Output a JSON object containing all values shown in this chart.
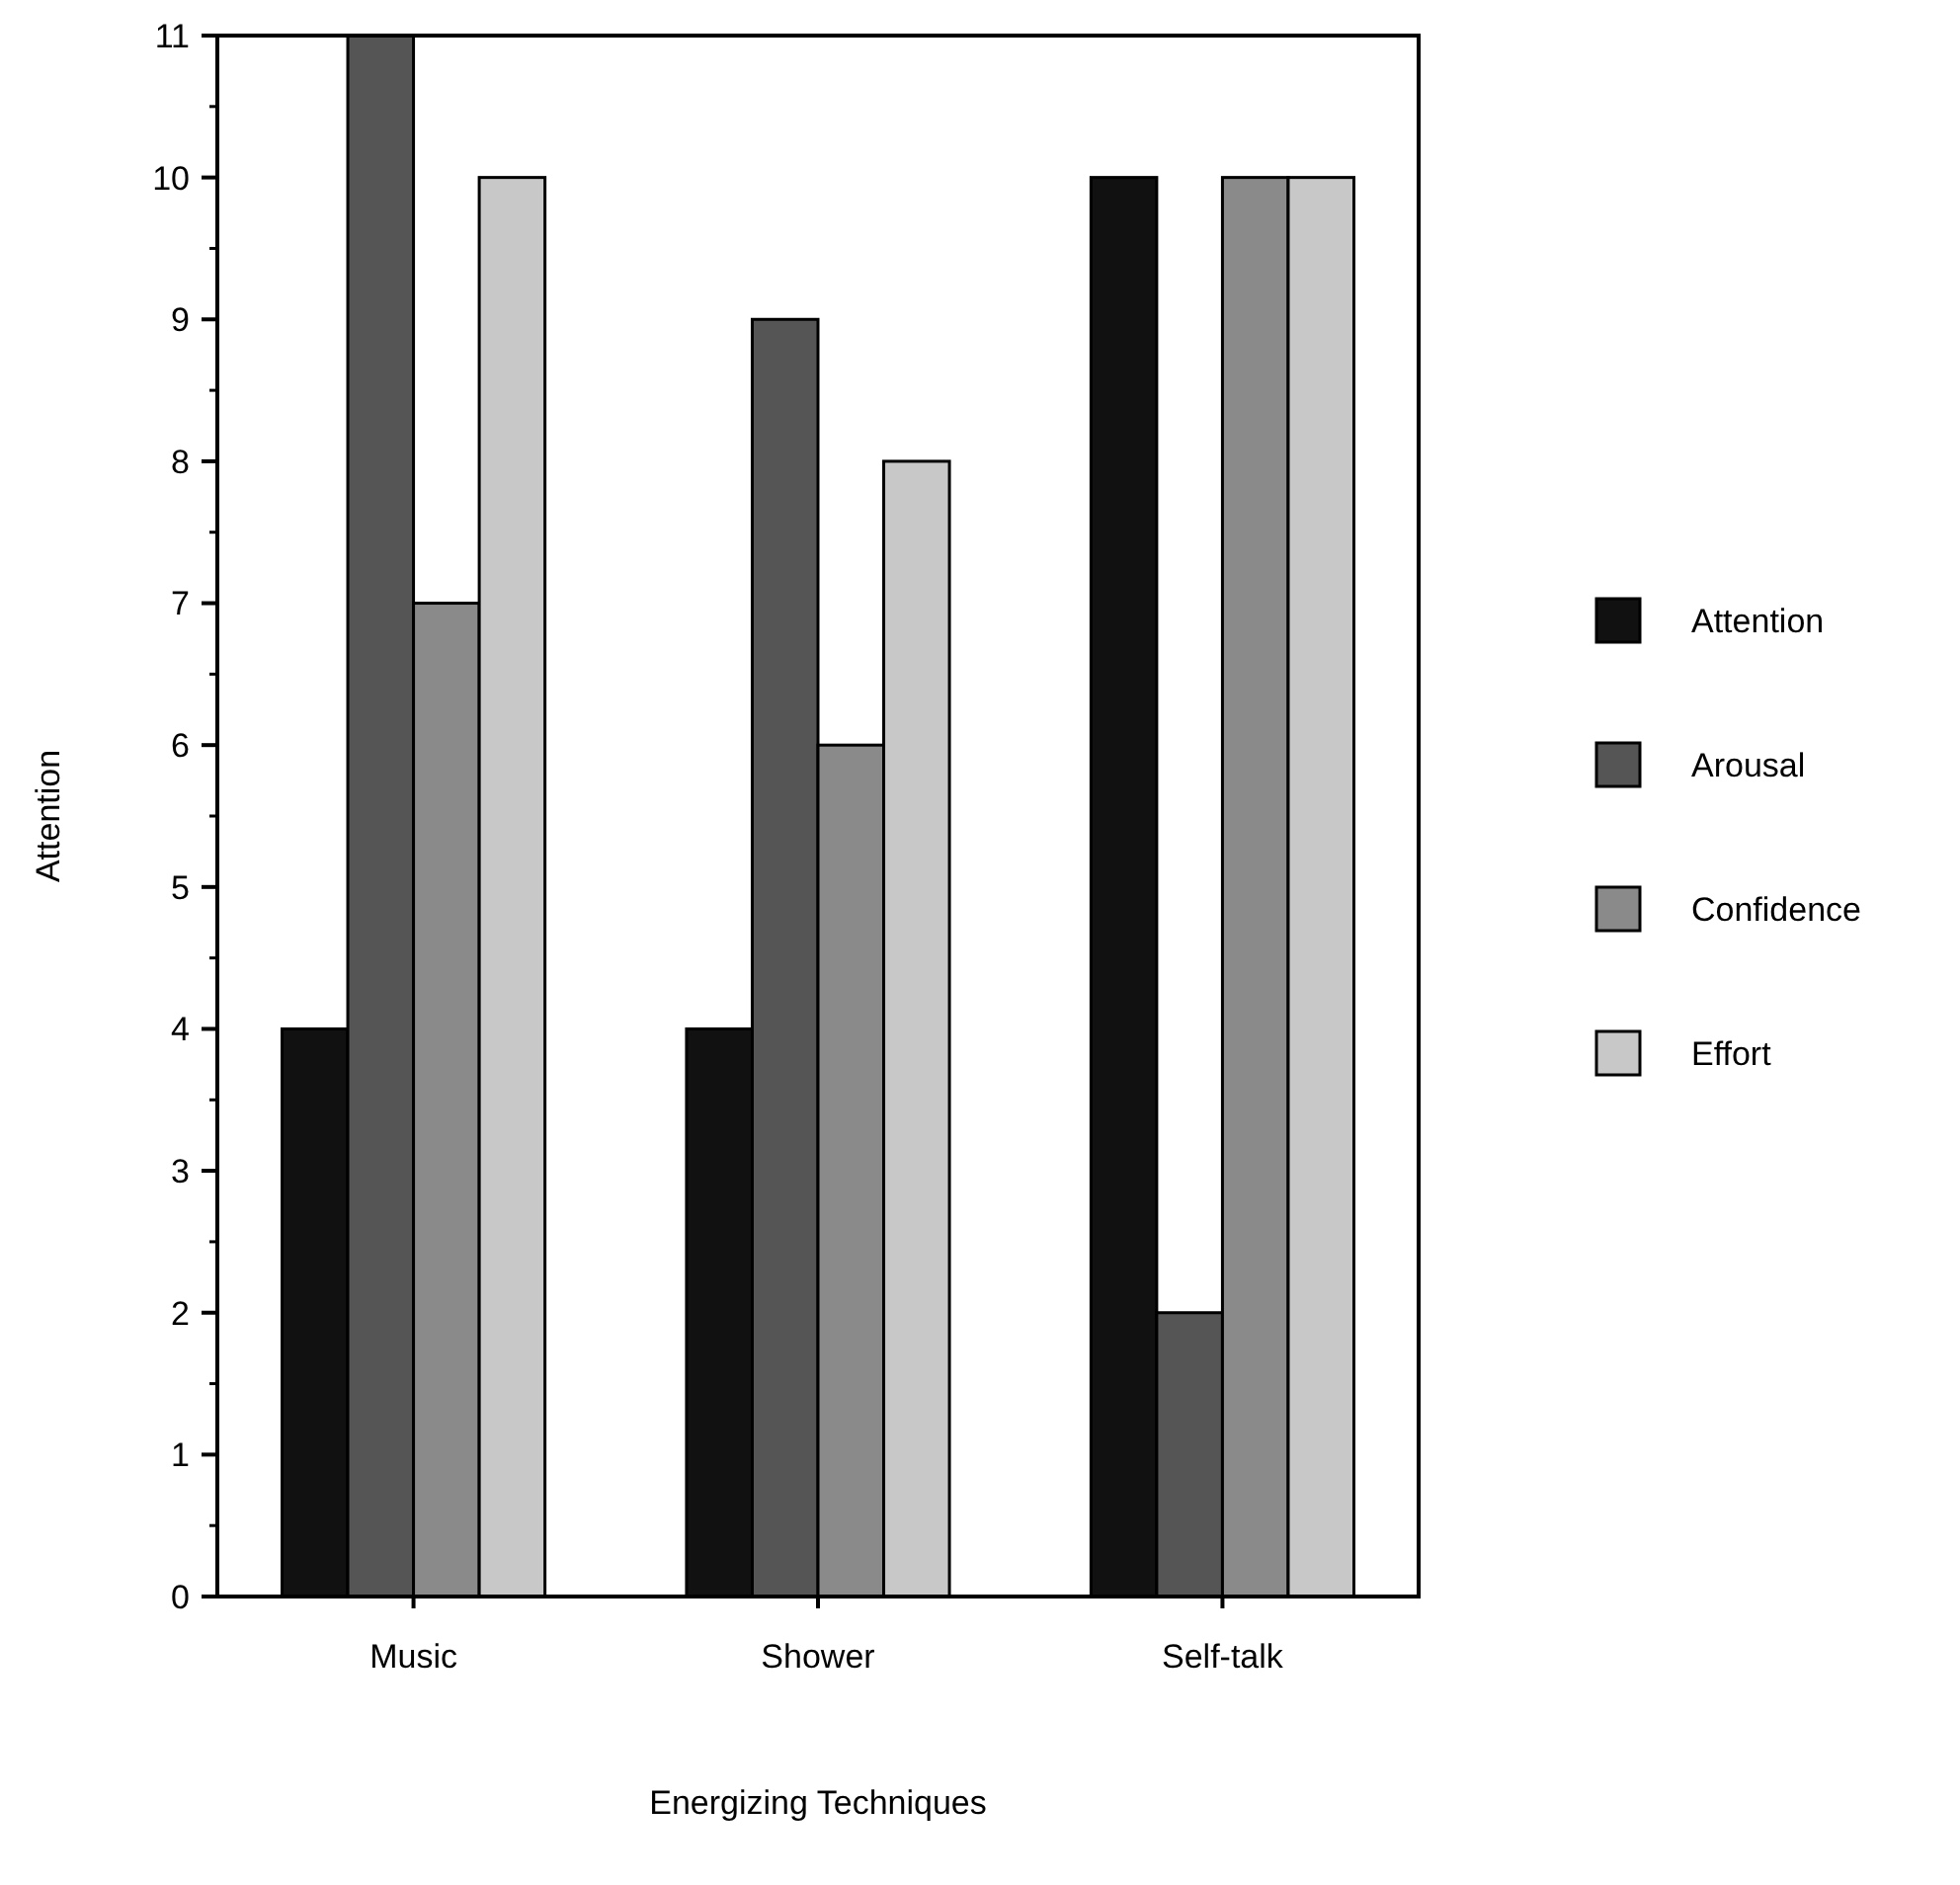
{
  "chart_data": {
    "type": "bar",
    "xlabel": "Energizing Techniques",
    "ylabel": "Attention",
    "categories": [
      "Music",
      "Shower",
      "Self-talk"
    ],
    "series": [
      {
        "name": "Attention",
        "color": "#111111",
        "values": [
          4,
          4,
          10
        ]
      },
      {
        "name": "Arousal",
        "color": "#555555",
        "values": [
          11,
          9,
          2
        ]
      },
      {
        "name": "Confidence",
        "color": "#8a8a8a",
        "values": [
          7,
          6,
          10
        ]
      },
      {
        "name": "Effort",
        "color": "#c8c8c8",
        "values": [
          10,
          8,
          10
        ]
      }
    ],
    "ylim": [
      0,
      11
    ],
    "yticks": [
      0,
      1,
      2,
      3,
      4,
      5,
      6,
      7,
      8,
      9,
      10,
      11
    ],
    "grid": false,
    "legend": "right"
  }
}
